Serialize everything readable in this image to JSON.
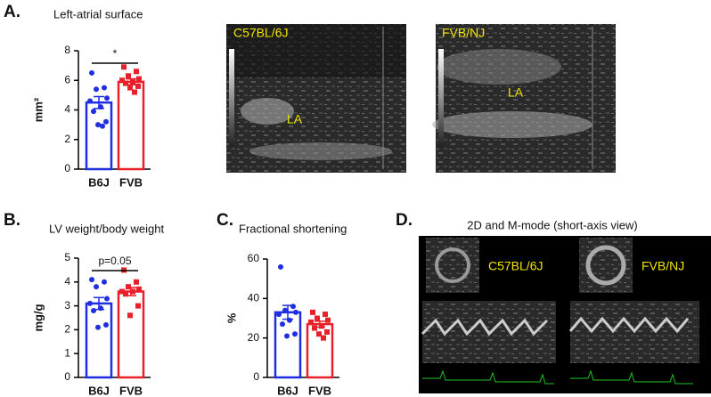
{
  "panel_labels": [
    "A.",
    "B.",
    "C.",
    "D."
  ],
  "images": [
    {
      "label": "C57BL/6J",
      "region": "LA"
    },
    {
      "label": "FVB/NJ",
      "region": "LA"
    }
  ],
  "panel_d": {
    "title": "2D and M-mode (short-axis view)",
    "labels": [
      "C57BL/6J",
      "FVB/NJ"
    ]
  },
  "chart_data": [
    {
      "type": "bar",
      "title": "Left-atrial surface",
      "ylabel": "mm²",
      "categories": [
        "B6J",
        "FVB"
      ],
      "colors": [
        "#1f2ee0",
        "#e8202a"
      ],
      "values": [
        4.5,
        5.9
      ],
      "errors": [
        0.4,
        0.2
      ],
      "points": [
        [
          6.5,
          5.5,
          5.4,
          4.8,
          4.6,
          4.2,
          3.9,
          3.2,
          3.0,
          2.9
        ],
        [
          6.9,
          6.6,
          6.3,
          6.1,
          6.0,
          5.9,
          5.8,
          5.6,
          5.5,
          5.2
        ]
      ],
      "annotation": "*",
      "ylim": [
        0,
        8
      ],
      "yticks": [
        0,
        2,
        4,
        6,
        8
      ]
    },
    {
      "type": "bar",
      "title": "LV weight/body weight",
      "ylabel": "mg/g",
      "categories": [
        "B6J",
        "FVB"
      ],
      "colors": [
        "#1f2ee0",
        "#e8202a"
      ],
      "values": [
        3.1,
        3.6
      ],
      "errors": [
        0.25,
        0.17
      ],
      "points": [
        [
          4.1,
          4.0,
          3.8,
          3.3,
          3.1,
          2.9,
          2.8,
          2.2,
          2.1
        ],
        [
          4.5,
          4.0,
          3.8,
          3.7,
          3.6,
          3.6,
          3.5,
          3.0,
          2.6
        ]
      ],
      "annotation": "p=0.05",
      "ylim": [
        0,
        5
      ],
      "yticks": [
        0,
        1,
        2,
        3,
        4,
        5
      ]
    },
    {
      "type": "bar",
      "title": "Fractional shortening",
      "ylabel": "%",
      "categories": [
        "B6J",
        "FVB"
      ],
      "colors": [
        "#1f2ee0",
        "#e8202a"
      ],
      "values": [
        33,
        27
      ],
      "errors": [
        3.5,
        1.5
      ],
      "points": [
        [
          56,
          36,
          34,
          33,
          32,
          29,
          27,
          22,
          21
        ],
        [
          33,
          32,
          30,
          29,
          28,
          26,
          25,
          23,
          22,
          20
        ]
      ],
      "ylim": [
        0,
        60
      ],
      "yticks": [
        0,
        20,
        40,
        60
      ]
    }
  ]
}
